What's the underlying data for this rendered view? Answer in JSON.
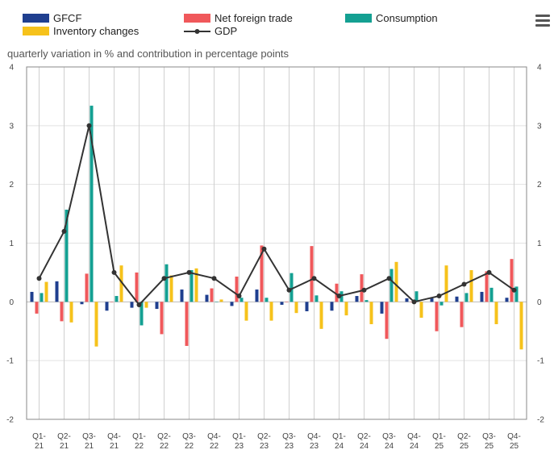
{
  "chart_data": {
    "type": "bar",
    "subtitle": "quarterly variation in % and contribution in percentage points",
    "categories": [
      "Q1-21",
      "Q2-21",
      "Q3-21",
      "Q4-21",
      "Q1-22",
      "Q2-22",
      "Q3-22",
      "Q4-22",
      "Q1-23",
      "Q2-23",
      "Q3-23",
      "Q4-23",
      "Q1-24",
      "Q2-24",
      "Q3-24",
      "Q4-24",
      "Q1-25",
      "Q2-25",
      "Q3-25",
      "Q4-25"
    ],
    "category_lines": [
      [
        "Q1-",
        "21"
      ],
      [
        "Q2-",
        "21"
      ],
      [
        "Q3-",
        "21"
      ],
      [
        "Q4-",
        "21"
      ],
      [
        "Q1-",
        "22"
      ],
      [
        "Q2-",
        "22"
      ],
      [
        "Q3-",
        "22"
      ],
      [
        "Q4-",
        "22"
      ],
      [
        "Q1-",
        "23"
      ],
      [
        "Q2-",
        "23"
      ],
      [
        "Q3-",
        "23"
      ],
      [
        "Q4-",
        "23"
      ],
      [
        "Q1-",
        "24"
      ],
      [
        "Q2-",
        "24"
      ],
      [
        "Q3-",
        "24"
      ],
      [
        "Q4-",
        "24"
      ],
      [
        "Q1-",
        "25"
      ],
      [
        "Q2-",
        "25"
      ],
      [
        "Q3-",
        "25"
      ],
      [
        "Q4-",
        "25"
      ]
    ],
    "ylim": [
      -2,
      4
    ],
    "yticks": [
      -2,
      -1,
      0,
      1,
      2,
      3,
      4
    ],
    "ytick_labels": [
      "-2",
      "-1",
      "0",
      "1",
      "2",
      "3",
      "4"
    ],
    "grid": true,
    "legend": "top",
    "series": [
      {
        "name": "GFCF",
        "type": "bar",
        "color": "#1f3f8f",
        "values": [
          0.17,
          0.35,
          -0.04,
          -0.15,
          -0.1,
          -0.12,
          0.21,
          0.12,
          -0.07,
          0.21,
          -0.05,
          -0.16,
          -0.15,
          0.1,
          -0.2,
          0.06,
          0.06,
          0.09,
          0.17,
          0.07
        ]
      },
      {
        "name": "Net foreign trade",
        "type": "bar",
        "color": "#f0585b",
        "values": [
          -0.2,
          -0.33,
          0.48,
          0.0,
          0.5,
          -0.55,
          -0.75,
          0.23,
          0.43,
          0.96,
          0.0,
          0.95,
          0.31,
          0.47,
          -0.63,
          0.0,
          -0.5,
          -0.43,
          0.52,
          0.73
        ]
      },
      {
        "name": "Consumption",
        "type": "bar",
        "color": "#14a092",
        "values": [
          0.15,
          1.57,
          3.34,
          0.1,
          -0.4,
          0.64,
          0.54,
          0.0,
          0.07,
          0.07,
          0.49,
          0.11,
          0.18,
          0.03,
          0.56,
          0.18,
          -0.06,
          0.15,
          0.24,
          0.26
        ]
      },
      {
        "name": "Inventory changes",
        "type": "bar",
        "color": "#f6c21b",
        "values": [
          0.34,
          -0.35,
          -0.76,
          0.62,
          -0.1,
          0.45,
          0.57,
          0.04,
          -0.32,
          -0.32,
          -0.19,
          -0.46,
          -0.23,
          -0.38,
          0.68,
          -0.27,
          0.62,
          0.54,
          -0.38,
          -0.81
        ]
      },
      {
        "name": "GDP",
        "type": "line",
        "color": "#333333",
        "values": [
          0.4,
          1.2,
          3.0,
          0.5,
          -0.05,
          0.4,
          0.5,
          0.4,
          0.1,
          0.9,
          0.2,
          0.4,
          0.1,
          0.2,
          0.4,
          0.0,
          0.1,
          0.3,
          0.5,
          0.2
        ]
      }
    ]
  },
  "menu_icon": "hamburger-menu-icon"
}
